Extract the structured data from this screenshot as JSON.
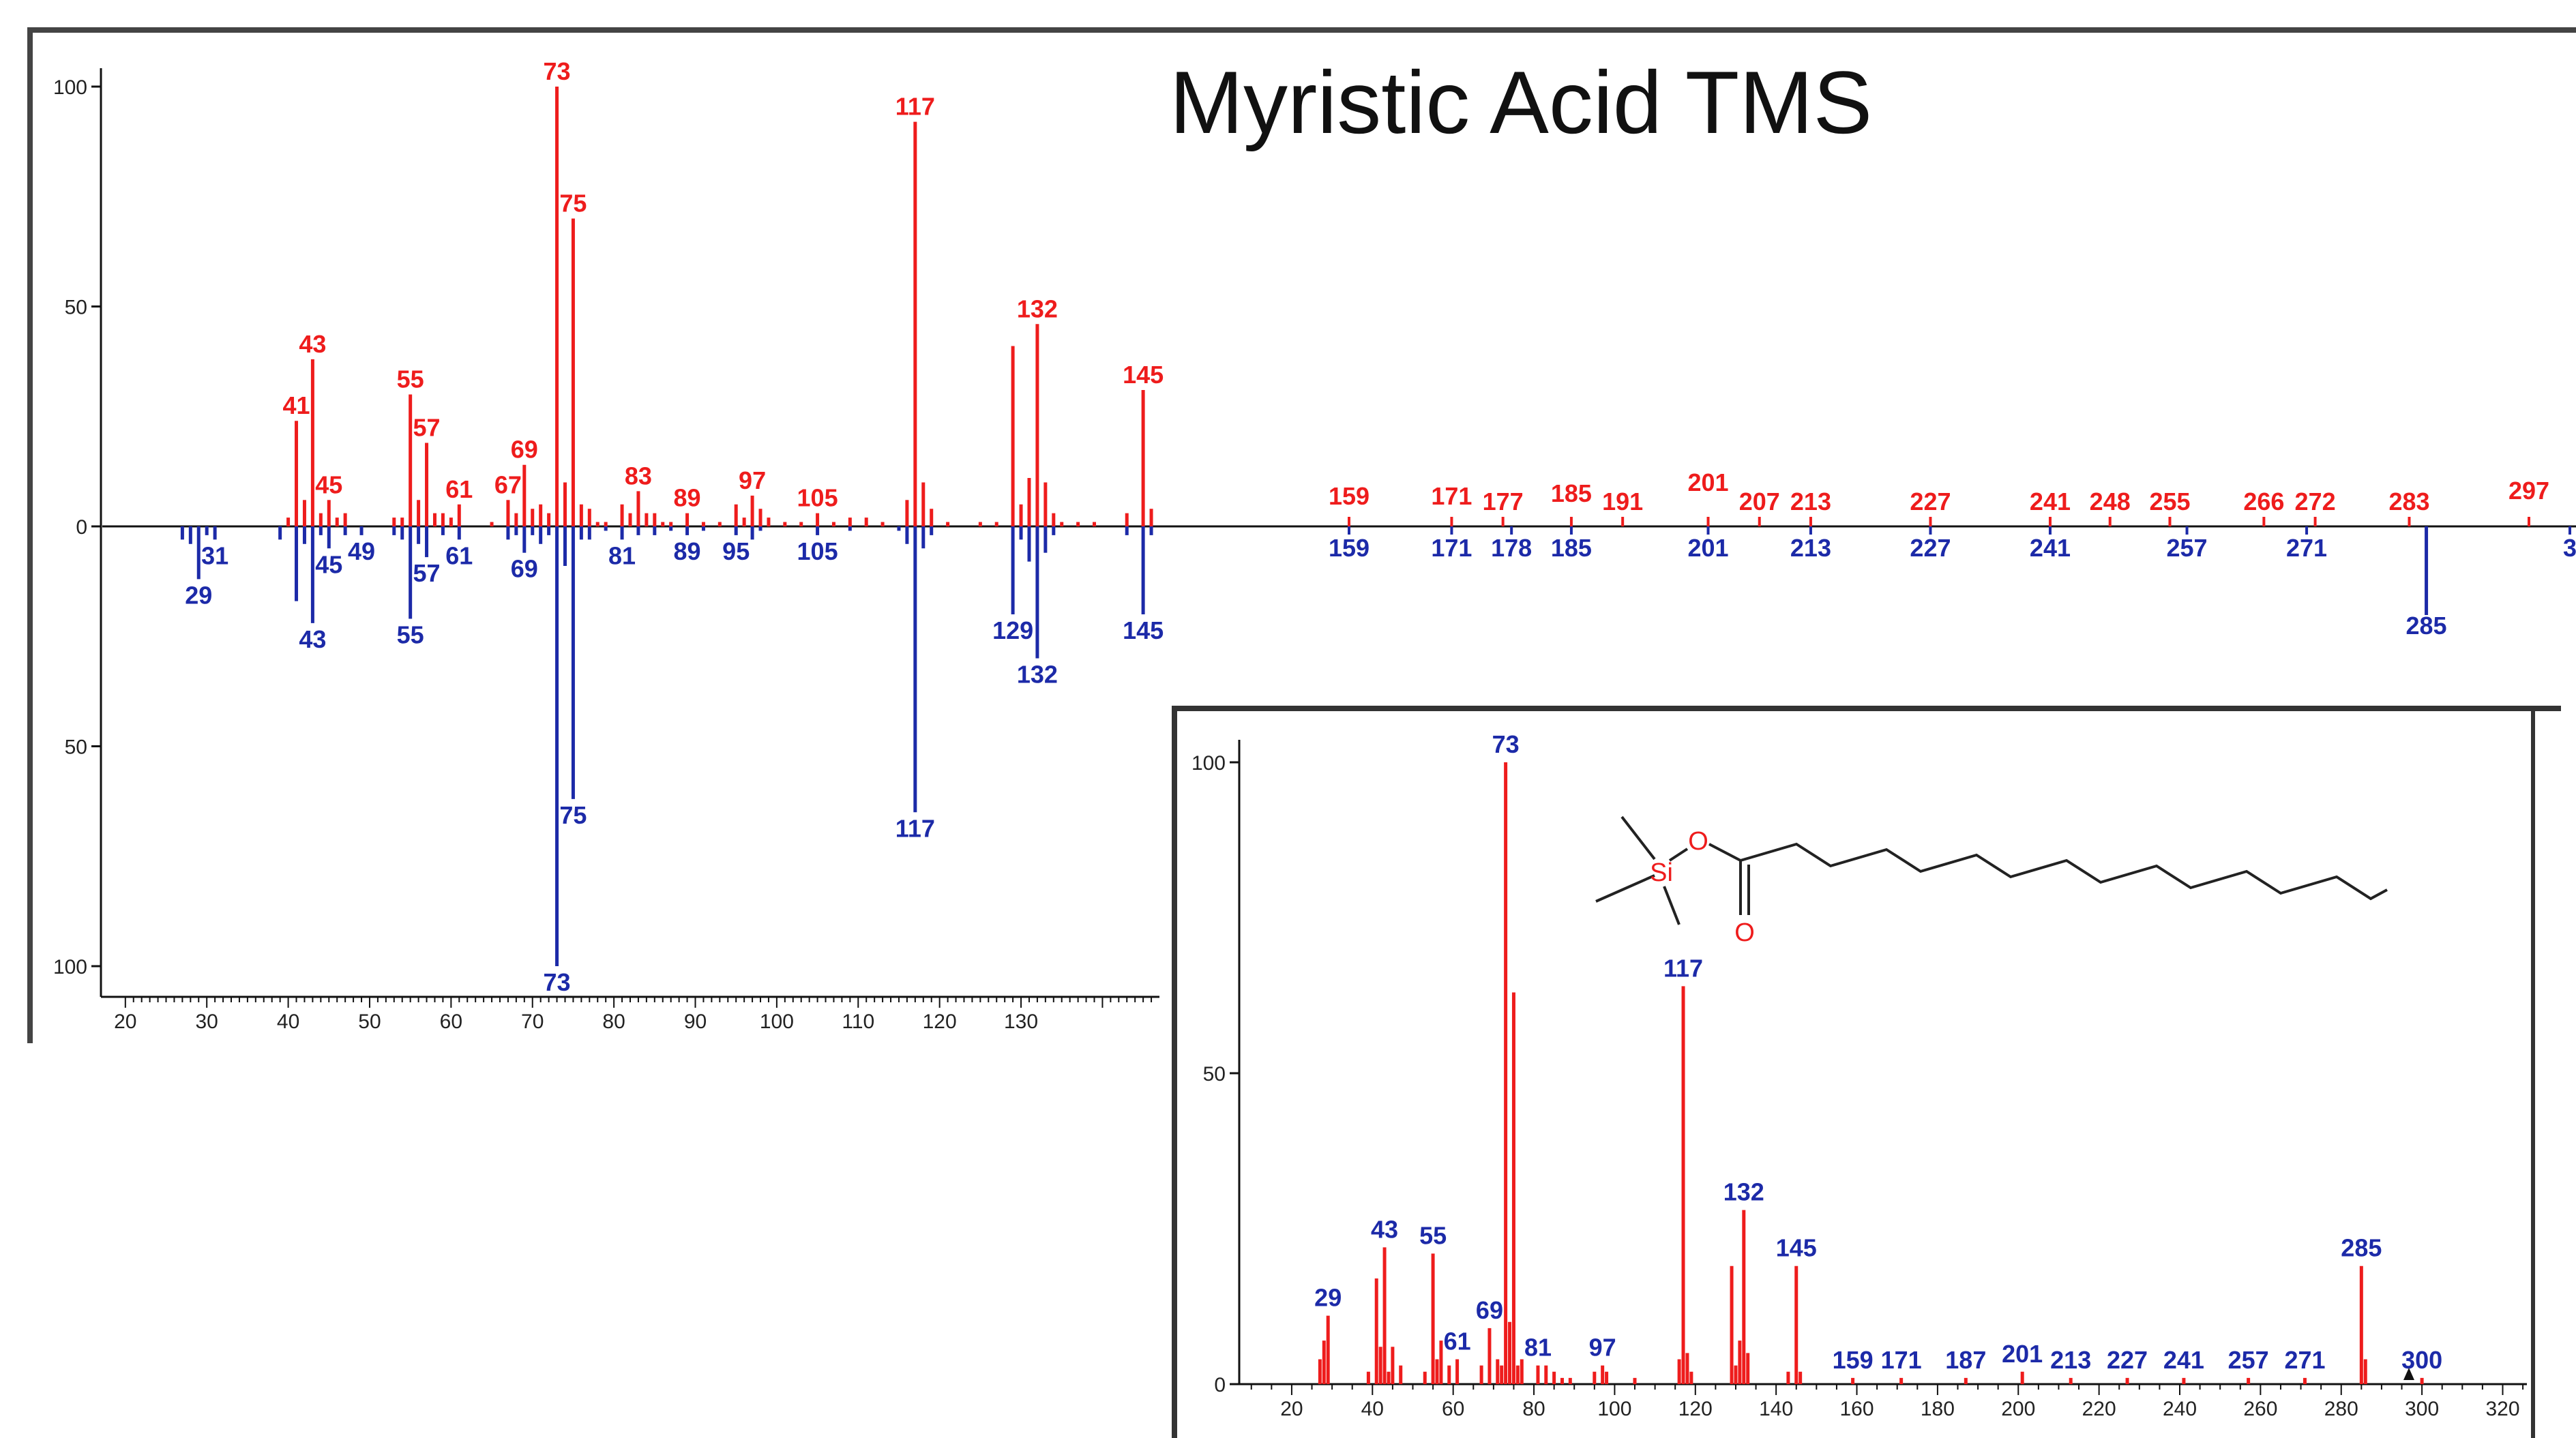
{
  "title": "Myristic Acid TMS",
  "colors": {
    "top": "#ee1c1c",
    "bottom": "#1c2aa8",
    "frame": "#444444",
    "axis": "#111111"
  },
  "chart_data": [
    {
      "type": "bar",
      "name": "Mirror plot comparison (top vs. reversed bottom spectrum)",
      "xlabel": "",
      "ylabel": "",
      "xlim": [
        17,
        147
      ],
      "ylim": [
        -100,
        100
      ],
      "xticks": [
        20,
        30,
        40,
        50,
        60,
        70,
        80,
        90,
        100,
        110,
        120,
        130
      ],
      "yticks": [
        {
          "v": 100,
          "t": "100"
        },
        {
          "v": 50,
          "t": "50"
        },
        {
          "v": 0,
          "t": "0"
        },
        {
          "v": -50,
          "t": "50"
        },
        {
          "v": -100,
          "t": "100"
        }
      ],
      "top": [
        {
          "x": 40,
          "y": 2
        },
        {
          "x": 41,
          "y": 24,
          "l": "41"
        },
        {
          "x": 42,
          "y": 6
        },
        {
          "x": 43,
          "y": 38,
          "l": "43"
        },
        {
          "x": 44,
          "y": 3
        },
        {
          "x": 45,
          "y": 6,
          "l": "45"
        },
        {
          "x": 46,
          "y": 2
        },
        {
          "x": 47,
          "y": 3
        },
        {
          "x": 53,
          "y": 2
        },
        {
          "x": 54,
          "y": 2
        },
        {
          "x": 55,
          "y": 30,
          "l": "55"
        },
        {
          "x": 56,
          "y": 6
        },
        {
          "x": 57,
          "y": 19,
          "l": "57"
        },
        {
          "x": 58,
          "y": 3
        },
        {
          "x": 59,
          "y": 3
        },
        {
          "x": 60,
          "y": 2
        },
        {
          "x": 61,
          "y": 5,
          "l": "61"
        },
        {
          "x": 65,
          "y": 1
        },
        {
          "x": 67,
          "y": 6,
          "l": "67"
        },
        {
          "x": 68,
          "y": 3
        },
        {
          "x": 69,
          "y": 14,
          "l": "69"
        },
        {
          "x": 70,
          "y": 4
        },
        {
          "x": 71,
          "y": 5
        },
        {
          "x": 72,
          "y": 3
        },
        {
          "x": 73,
          "y": 100,
          "l": "73"
        },
        {
          "x": 74,
          "y": 10
        },
        {
          "x": 75,
          "y": 70,
          "l": "75"
        },
        {
          "x": 76,
          "y": 5
        },
        {
          "x": 77,
          "y": 4
        },
        {
          "x": 78,
          "y": 1
        },
        {
          "x": 79,
          "y": 1
        },
        {
          "x": 81,
          "y": 5
        },
        {
          "x": 82,
          "y": 3
        },
        {
          "x": 83,
          "y": 8,
          "l": "83"
        },
        {
          "x": 84,
          "y": 3
        },
        {
          "x": 85,
          "y": 3
        },
        {
          "x": 86,
          "y": 1
        },
        {
          "x": 87,
          "y": 1
        },
        {
          "x": 89,
          "y": 3,
          "l": "89"
        },
        {
          "x": 91,
          "y": 1
        },
        {
          "x": 93,
          "y": 1
        },
        {
          "x": 95,
          "y": 5
        },
        {
          "x": 96,
          "y": 2
        },
        {
          "x": 97,
          "y": 7,
          "l": "97"
        },
        {
          "x": 98,
          "y": 4
        },
        {
          "x": 99,
          "y": 2
        },
        {
          "x": 101,
          "y": 1
        },
        {
          "x": 103,
          "y": 1
        },
        {
          "x": 105,
          "y": 3,
          "l": "105"
        },
        {
          "x": 107,
          "y": 1
        },
        {
          "x": 109,
          "y": 2
        },
        {
          "x": 111,
          "y": 2
        },
        {
          "x": 113,
          "y": 1
        },
        {
          "x": 116,
          "y": 6
        },
        {
          "x": 117,
          "y": 92,
          "l": "117"
        },
        {
          "x": 118,
          "y": 10
        },
        {
          "x": 119,
          "y": 4
        },
        {
          "x": 121,
          "y": 1
        },
        {
          "x": 125,
          "y": 1
        },
        {
          "x": 127,
          "y": 1
        },
        {
          "x": 129,
          "y": 41
        },
        {
          "x": 130,
          "y": 5
        },
        {
          "x": 131,
          "y": 11
        },
        {
          "x": 132,
          "y": 46,
          "l": "132"
        },
        {
          "x": 133,
          "y": 10
        },
        {
          "x": 134,
          "y": 3
        },
        {
          "x": 135,
          "y": 1
        },
        {
          "x": 137,
          "y": 1
        },
        {
          "x": 139,
          "y": 1
        },
        {
          "x": 143,
          "y": 3
        },
        {
          "x": 145,
          "y": 31,
          "l": "145"
        },
        {
          "x": 146,
          "y": 4
        }
      ],
      "bottom": [
        {
          "x": 27,
          "y": 3
        },
        {
          "x": 28,
          "y": 4
        },
        {
          "x": 29,
          "y": 12,
          "l": "29"
        },
        {
          "x": 30,
          "y": 2
        },
        {
          "x": 31,
          "y": 3,
          "l": "31"
        },
        {
          "x": 39,
          "y": 3
        },
        {
          "x": 41,
          "y": 17
        },
        {
          "x": 42,
          "y": 4
        },
        {
          "x": 43,
          "y": 22,
          "l": "43"
        },
        {
          "x": 44,
          "y": 2
        },
        {
          "x": 45,
          "y": 5,
          "l": "45"
        },
        {
          "x": 47,
          "y": 2
        },
        {
          "x": 49,
          "y": 2,
          "l": "49"
        },
        {
          "x": 53,
          "y": 2
        },
        {
          "x": 54,
          "y": 3
        },
        {
          "x": 55,
          "y": 21,
          "l": "55"
        },
        {
          "x": 56,
          "y": 4
        },
        {
          "x": 57,
          "y": 7,
          "l": "57"
        },
        {
          "x": 59,
          "y": 2
        },
        {
          "x": 61,
          "y": 3,
          "l": "61"
        },
        {
          "x": 67,
          "y": 3
        },
        {
          "x": 68,
          "y": 2
        },
        {
          "x": 69,
          "y": 6,
          "l": "69"
        },
        {
          "x": 70,
          "y": 2
        },
        {
          "x": 71,
          "y": 4
        },
        {
          "x": 72,
          "y": 2
        },
        {
          "x": 73,
          "y": 100,
          "l": "73"
        },
        {
          "x": 74,
          "y": 9
        },
        {
          "x": 75,
          "y": 62,
          "l": "75"
        },
        {
          "x": 76,
          "y": 3
        },
        {
          "x": 77,
          "y": 3
        },
        {
          "x": 79,
          "y": 1
        },
        {
          "x": 81,
          "y": 3,
          "l": "81"
        },
        {
          "x": 83,
          "y": 2
        },
        {
          "x": 85,
          "y": 2
        },
        {
          "x": 87,
          "y": 1
        },
        {
          "x": 89,
          "y": 2,
          "l": "89"
        },
        {
          "x": 91,
          "y": 1
        },
        {
          "x": 95,
          "y": 2,
          "l": "95"
        },
        {
          "x": 97,
          "y": 3
        },
        {
          "x": 98,
          "y": 1
        },
        {
          "x": 105,
          "y": 2,
          "l": "105"
        },
        {
          "x": 109,
          "y": 1
        },
        {
          "x": 115,
          "y": 1
        },
        {
          "x": 116,
          "y": 4
        },
        {
          "x": 117,
          "y": 65,
          "l": "117"
        },
        {
          "x": 118,
          "y": 5
        },
        {
          "x": 119,
          "y": 2
        },
        {
          "x": 129,
          "y": 20,
          "l": "129"
        },
        {
          "x": 130,
          "y": 3
        },
        {
          "x": 131,
          "y": 8
        },
        {
          "x": 132,
          "y": 30,
          "l": "132"
        },
        {
          "x": 133,
          "y": 6
        },
        {
          "x": 134,
          "y": 2
        },
        {
          "x": 143,
          "y": 2
        },
        {
          "x": 145,
          "y": 20,
          "l": "145"
        },
        {
          "x": 146,
          "y": 2
        }
      ],
      "far_labels": {
        "top": [
          "159",
          "171",
          "177",
          "185",
          "191",
          "201",
          "207",
          "213",
          "227",
          "241",
          "248",
          "255",
          "266",
          "272",
          "283",
          "297"
        ],
        "bottom": [
          "159",
          "171",
          "178",
          "185",
          "201",
          "213",
          "227",
          "241",
          "257",
          "271",
          "285",
          "3"
        ]
      }
    },
    {
      "type": "bar",
      "name": "Reference spectrum (inset)",
      "xlabel": "",
      "ylabel": "",
      "xlim": [
        7,
        326
      ],
      "ylim": [
        0,
        100
      ],
      "xticks": [
        20,
        40,
        60,
        80,
        100,
        120,
        140,
        160,
        180,
        200,
        220,
        240,
        260,
        280,
        300,
        320
      ],
      "yticks": [
        0,
        50,
        100
      ],
      "peaks": [
        {
          "x": 27,
          "y": 4
        },
        {
          "x": 28,
          "y": 7
        },
        {
          "x": 29,
          "y": 11,
          "l": "29"
        },
        {
          "x": 39,
          "y": 2
        },
        {
          "x": 41,
          "y": 17
        },
        {
          "x": 42,
          "y": 6
        },
        {
          "x": 43,
          "y": 22,
          "l": "43"
        },
        {
          "x": 44,
          "y": 2
        },
        {
          "x": 45,
          "y": 6
        },
        {
          "x": 47,
          "y": 3
        },
        {
          "x": 53,
          "y": 2
        },
        {
          "x": 55,
          "y": 21,
          "l": "55"
        },
        {
          "x": 56,
          "y": 4
        },
        {
          "x": 57,
          "y": 7
        },
        {
          "x": 59,
          "y": 3
        },
        {
          "x": 61,
          "y": 4,
          "l": "61"
        },
        {
          "x": 67,
          "y": 3
        },
        {
          "x": 69,
          "y": 9,
          "l": "69"
        },
        {
          "x": 71,
          "y": 4
        },
        {
          "x": 72,
          "y": 3
        },
        {
          "x": 73,
          "y": 100,
          "l": "73"
        },
        {
          "x": 74,
          "y": 10
        },
        {
          "x": 75,
          "y": 63
        },
        {
          "x": 76,
          "y": 3
        },
        {
          "x": 77,
          "y": 4
        },
        {
          "x": 81,
          "y": 3,
          "l": "81"
        },
        {
          "x": 83,
          "y": 3
        },
        {
          "x": 85,
          "y": 2
        },
        {
          "x": 87,
          "y": 1
        },
        {
          "x": 89,
          "y": 1
        },
        {
          "x": 95,
          "y": 2
        },
        {
          "x": 97,
          "y": 3,
          "l": "97"
        },
        {
          "x": 98,
          "y": 2
        },
        {
          "x": 105,
          "y": 1
        },
        {
          "x": 116,
          "y": 4
        },
        {
          "x": 117,
          "y": 64,
          "l": "117"
        },
        {
          "x": 118,
          "y": 5
        },
        {
          "x": 119,
          "y": 2
        },
        {
          "x": 129,
          "y": 19
        },
        {
          "x": 130,
          "y": 3
        },
        {
          "x": 131,
          "y": 7
        },
        {
          "x": 132,
          "y": 28,
          "l": "132"
        },
        {
          "x": 133,
          "y": 5
        },
        {
          "x": 143,
          "y": 2
        },
        {
          "x": 145,
          "y": 19,
          "l": "145"
        },
        {
          "x": 146,
          "y": 2
        },
        {
          "x": 159,
          "y": 1,
          "l": "159"
        },
        {
          "x": 171,
          "y": 1,
          "l": "171"
        },
        {
          "x": 187,
          "y": 1,
          "l": "187"
        },
        {
          "x": 201,
          "y": 2,
          "l": "201"
        },
        {
          "x": 213,
          "y": 1,
          "l": "213"
        },
        {
          "x": 227,
          "y": 1,
          "l": "227"
        },
        {
          "x": 241,
          "y": 1,
          "l": "241"
        },
        {
          "x": 257,
          "y": 1,
          "l": "257"
        },
        {
          "x": 271,
          "y": 1,
          "l": "271"
        },
        {
          "x": 285,
          "y": 19,
          "l": "285"
        },
        {
          "x": 286,
          "y": 4
        },
        {
          "x": 300,
          "y": 1,
          "l": "300"
        }
      ],
      "structure": {
        "atom_labels": [
          "Si",
          "O",
          "O"
        ]
      }
    }
  ]
}
